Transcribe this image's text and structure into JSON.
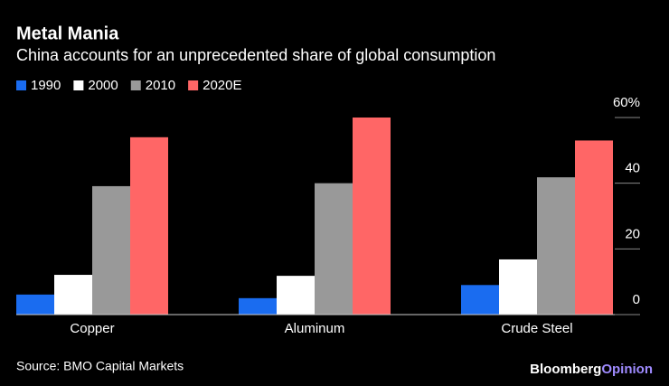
{
  "chart_data": {
    "type": "bar",
    "title": "Metal Mania",
    "subtitle": "China accounts for an unprecedented share of global consumption",
    "categories": [
      "Copper",
      "Aluminum",
      "Crude Steel"
    ],
    "series": [
      {
        "name": "1990",
        "color": "#1a6cf0",
        "values": [
          6.1,
          5,
          9
        ]
      },
      {
        "name": "2000",
        "color": "#ffffff",
        "values": [
          12.1,
          11.8,
          16.8
        ]
      },
      {
        "name": "2010",
        "color": "#999999",
        "values": [
          39.1,
          40,
          41.8
        ]
      },
      {
        "name": "2020E",
        "color": "#ff6666",
        "values": [
          54,
          60,
          53
        ]
      }
    ],
    "ylim": [
      0,
      60
    ],
    "yticks": [
      0,
      20,
      40,
      {
        "value": 60,
        "label": "60%"
      }
    ],
    "legend": "top-left",
    "source": "Source: BMO Capital Markets",
    "brand": [
      "Bloomberg",
      "Opinion"
    ]
  }
}
